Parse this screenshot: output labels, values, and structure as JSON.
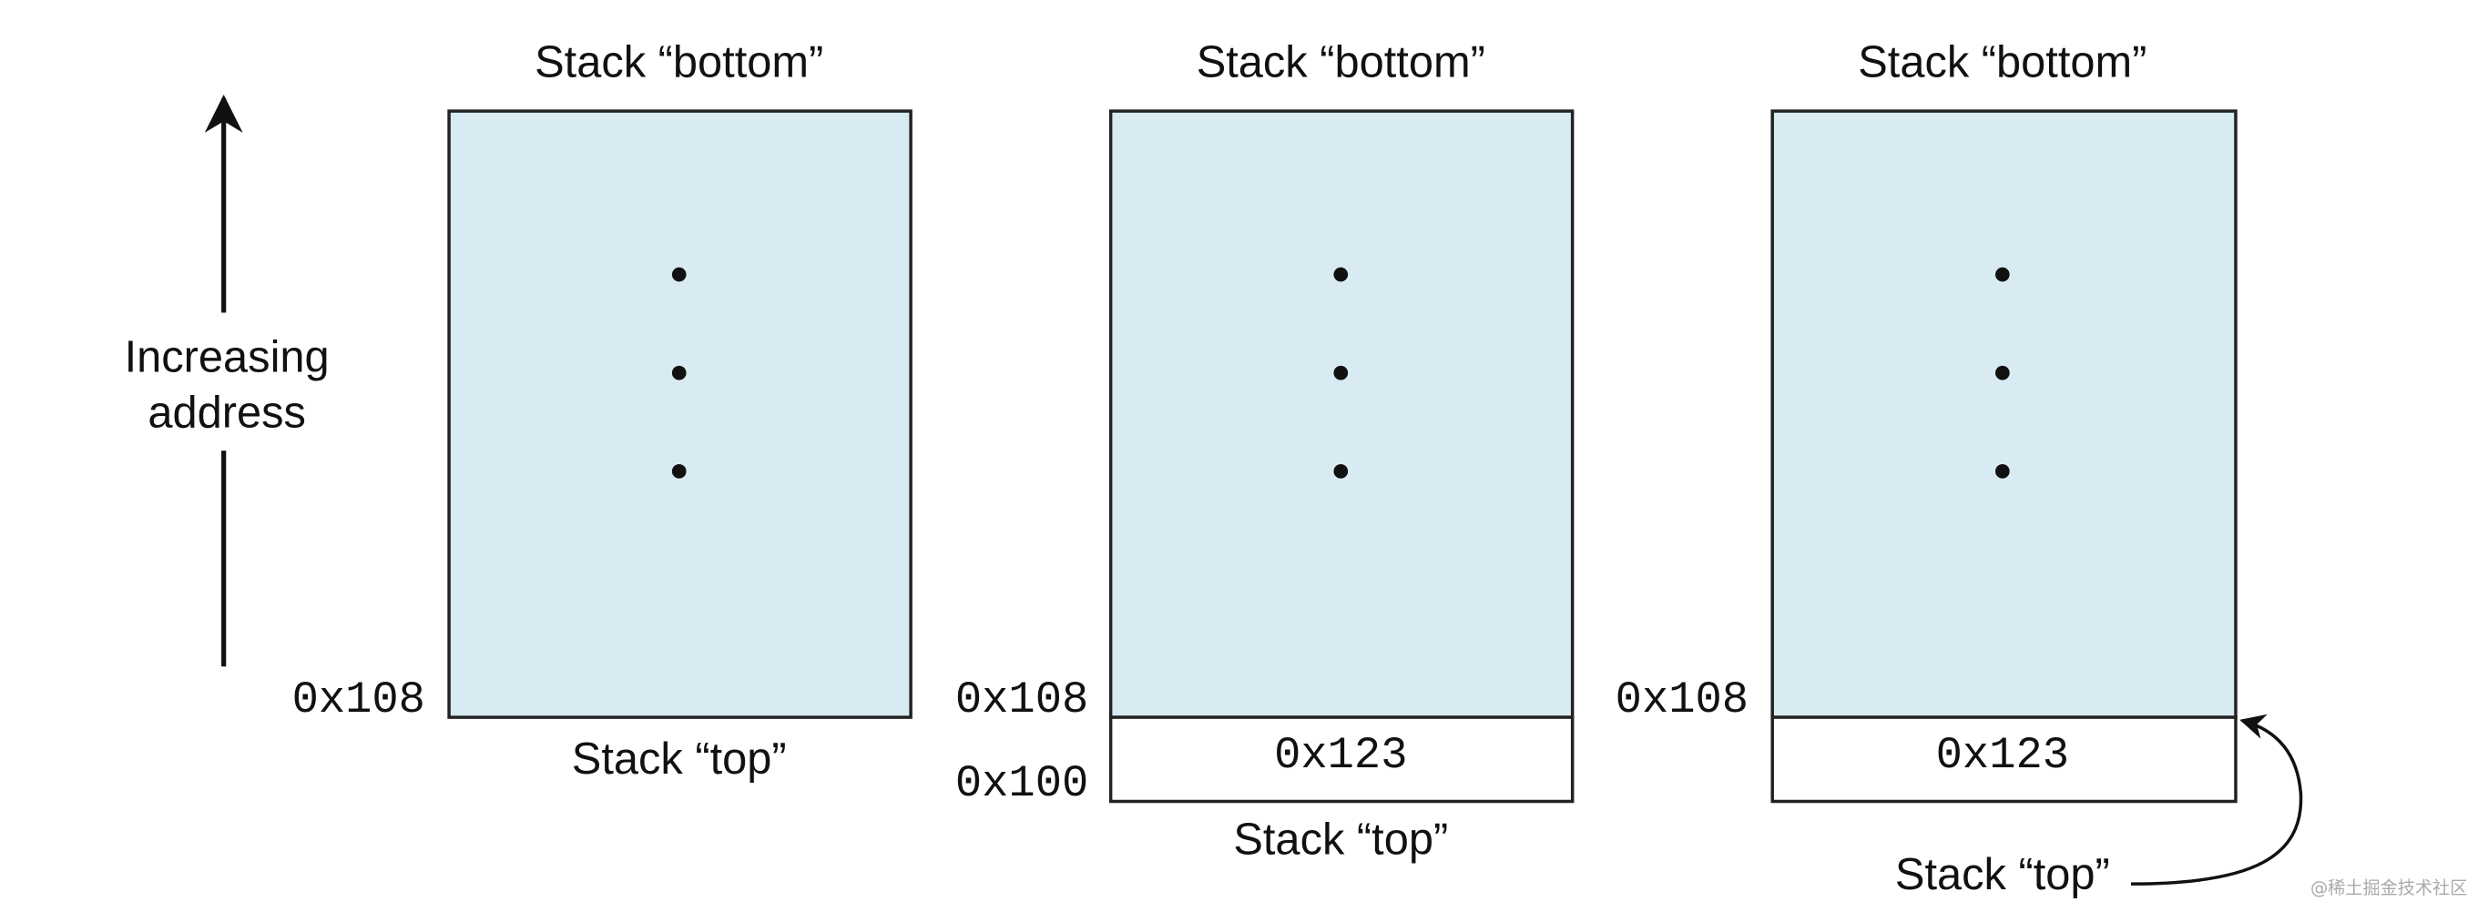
{
  "axis_label": {
    "lines": [
      "Increasing",
      "address"
    ]
  },
  "stacks": [
    {
      "bottom_label": "Stack “bottom”",
      "top_label": "Stack “top”",
      "addresses": [
        "0x108"
      ]
    },
    {
      "bottom_label": "Stack “bottom”",
      "top_label": "Stack “top”",
      "cell": "0x123",
      "addresses": [
        "0x108",
        "0x100"
      ]
    },
    {
      "bottom_label": "Stack “bottom”",
      "top_label": "Stack “top”",
      "cell": "0x123",
      "addresses": [
        "0x108"
      ]
    }
  ],
  "watermark": "@稀土掘金技术社区"
}
